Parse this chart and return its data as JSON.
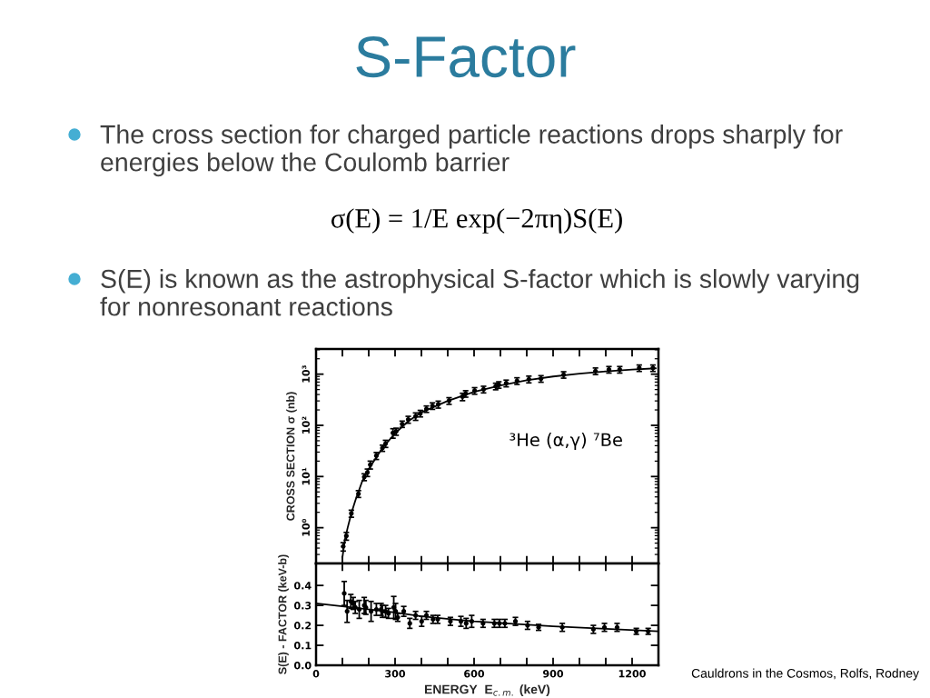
{
  "chart_data": [
    {
      "type": "other",
      "title": "S-Factor",
      "annotations": [
        "The cross section for charged particle reactions drops sharply for energies below the Coulomb barrier",
        "σ(E) = 1/E exp(−2πη)S(E)",
        "S(E) is known as the astrophysical S-factor which is slowly varying for nonresonant reactions",
        "Cauldrons in the Cosmos, Rolfs, Rodney"
      ]
    },
    {
      "type": "scatter",
      "ylabel": "CROSS SECTION σ (nb)",
      "annotations": [
        "³He (α,γ) ⁷Be"
      ],
      "log": "y",
      "tick_labels": "y",
      "xlim": [
        0,
        1300
      ],
      "xticks": [
        0,
        {
          "value": 100,
          "label": null
        },
        {
          "value": 200,
          "label": null
        },
        300,
        {
          "value": 400,
          "label": null
        },
        {
          "value": 500,
          "label": null
        },
        600,
        {
          "value": 700,
          "label": null
        },
        {
          "value": 800,
          "label": null
        },
        900,
        {
          "value": 1000,
          "label": null
        },
        {
          "value": 1100,
          "label": null
        },
        1200
      ],
      "ylim": [
        0.2,
        3100
      ],
      "yticks": [
        {
          "value": 1,
          "label": "10⁰"
        },
        {
          "value": 10,
          "label": "10¹"
        },
        {
          "value": 100,
          "label": "10²"
        },
        {
          "value": 1000,
          "label": "10³"
        }
      ],
      "series": [
        {
          "type": "line",
          "color": "#000000",
          "line_style": "solid",
          "x": [
            100,
            105,
            110,
            120,
            135,
            150,
            175,
            200,
            250,
            300,
            350,
            400,
            500,
            600,
            700,
            800,
            900,
            1000,
            1100,
            1200,
            1290
          ],
          "values": [
            0.26,
            0.4,
            0.6,
            1.0,
            2.0,
            3.5,
            8,
            14,
            35,
            70,
            120,
            180,
            300,
            450,
            600,
            760,
            900,
            1020,
            1130,
            1230,
            1300
          ]
        },
        {
          "type": "scatter",
          "color": "#000000",
          "marker": "circle",
          "x": [
            103,
            115,
            134,
            161,
            183,
            195,
            206,
            229,
            252,
            264,
            292,
            304,
            327,
            350,
            378,
            396,
            419,
            442,
            464,
            505,
            556,
            568,
            602,
            636,
            682,
            694,
            722,
            763,
            808,
            854,
            940,
            1061,
            1112,
            1153,
            1227,
            1279
          ],
          "values": [
            0.43,
            0.69,
            1.9,
            4.6,
            9.8,
            12,
            17,
            25.5,
            36,
            44,
            71,
            76,
            106,
            130,
            150,
            171,
            209,
            240,
            257,
            302,
            363,
            415,
            475,
            505,
            580,
            620,
            665,
            740,
            795,
            815,
            975,
            1150,
            1230,
            1230,
            1320,
            1320
          ],
          "errors": [
            0.08,
            0.12,
            0.3,
            0.7,
            1.5,
            2,
            3,
            4,
            5,
            7,
            15,
            12,
            15,
            20,
            25,
            25,
            30,
            35,
            40,
            45,
            60,
            60,
            70,
            75,
            85,
            90,
            100,
            110,
            120,
            120,
            140,
            170,
            180,
            180,
            190,
            190
          ]
        }
      ]
    },
    {
      "type": "scatter",
      "xlabel": "ENERGY  E$_{c.m.}$ (keV)",
      "ylabel": "S(E) - FACTOR (keV-b)",
      "xlim": [
        0,
        1300
      ],
      "xticks": [
        0,
        {
          "value": 100,
          "label": null
        },
        {
          "value": 200,
          "label": null
        },
        300,
        {
          "value": 400,
          "label": null
        },
        {
          "value": 500,
          "label": null
        },
        600,
        {
          "value": 700,
          "label": null
        },
        {
          "value": 800,
          "label": null
        },
        900,
        {
          "value": 1000,
          "label": null
        },
        {
          "value": 1100,
          "label": null
        },
        1200
      ],
      "ylim": [
        0,
        0.51
      ],
      "yticks": [
        {
          "value": 0,
          "label": "0.0"
        },
        0.1,
        0.2,
        0.3,
        0.4
      ],
      "series": [
        {
          "type": "line",
          "color": "#000000",
          "line_style": "solid",
          "x": [
            0,
            100,
            300,
            400,
            600,
            900,
            1300
          ],
          "values": [
            0.31,
            0.295,
            0.265,
            0.245,
            0.22,
            0.195,
            0.17
          ]
        },
        {
          "type": "scatter",
          "color": "#000000",
          "marker": "circle",
          "x": [
            107,
            118,
            132,
            141,
            149,
            164,
            183,
            189,
            209,
            229,
            247,
            252,
            264,
            275,
            295,
            302,
            310,
            333,
            356,
            378,
            401,
            419,
            444,
            462,
            510,
            550,
            570,
            591,
            634,
            677,
            696,
            717,
            757,
            803,
            845,
            935,
            1053,
            1095,
            1143,
            1216,
            1261
          ],
          "values": [
            0.36,
            0.27,
            0.32,
            0.31,
            0.29,
            0.28,
            0.3,
            0.29,
            0.27,
            0.28,
            0.28,
            0.27,
            0.27,
            0.26,
            0.29,
            0.27,
            0.24,
            0.27,
            0.21,
            0.25,
            0.22,
            0.25,
            0.23,
            0.23,
            0.22,
            0.22,
            0.21,
            0.22,
            0.21,
            0.21,
            0.21,
            0.21,
            0.22,
            0.2,
            0.19,
            0.19,
            0.18,
            0.19,
            0.19,
            0.17,
            0.17
          ],
          "errors": [
            0.06,
            0.055,
            0.035,
            0.03,
            0.03,
            0.045,
            0.04,
            0.035,
            0.05,
            0.03,
            0.03,
            0.03,
            0.03,
            0.025,
            0.055,
            0.04,
            0.02,
            0.025,
            0.025,
            0.02,
            0.025,
            0.02,
            0.02,
            0.02,
            0.02,
            0.025,
            0.025,
            0.03,
            0.02,
            0.02,
            0.02,
            0.02,
            0.02,
            0.02,
            0.015,
            0.02,
            0.02,
            0.02,
            0.02,
            0.015,
            0.015
          ]
        }
      ]
    }
  ]
}
